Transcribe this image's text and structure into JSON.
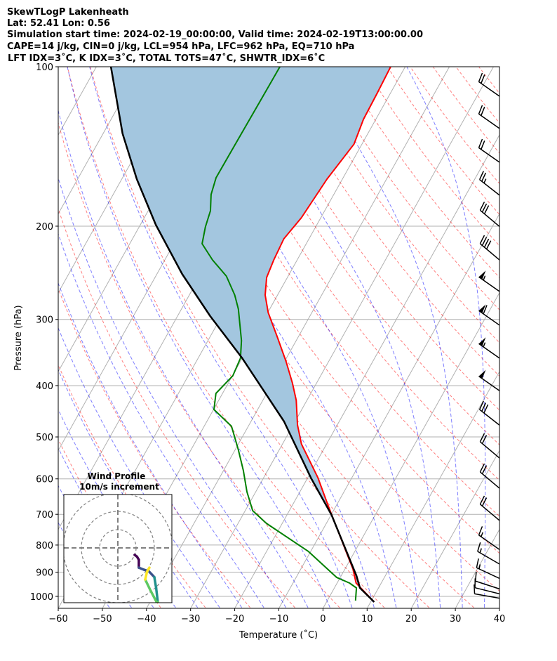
{
  "header": {
    "line1": "SkewTLogP Lakenheath",
    "line2": "Lat: 52.41   Lon: 0.56",
    "line3": "Simulation start time: 2024-02-19_00:00:00, Valid time: 2024-02-19T13:00:00.00",
    "line4": "CAPE=14 j/kg, CIN=0 j/kg, LCL=954 hPa, LFC=962 hPa, EQ=710 hPa",
    "line5": "LFT IDX=3˚C, K IDX=3˚C, TOTAL TOTS=47˚C, SHWTR_IDX=6˚C"
  },
  "chart_data": {
    "type": "line",
    "subtype": "skew-t log-p",
    "xlabel": "Temperature (˚C)",
    "ylabel": "Pressure (hPa)",
    "xlim": [
      -60,
      40
    ],
    "ylim": [
      1050,
      100
    ],
    "grid": true,
    "x_ticks": [
      -60,
      -50,
      -40,
      -30,
      -20,
      -10,
      0,
      10,
      20,
      30,
      40
    ],
    "y_ticks": [
      100,
      200,
      300,
      400,
      500,
      600,
      700,
      800,
      900,
      1000
    ],
    "series": [
      {
        "name": "Temperature",
        "color": "#ff0000",
        "p": [
          100,
          112.3,
          125.7,
          140,
          163,
          192.8,
          211.3,
          231.6,
          250,
          269.8,
          291.2,
          324,
          360.6,
          395.3,
          426.6,
          474.8,
          515.6,
          597,
          674.5,
          802.7,
          887.8,
          943.6,
          1024.7
        ],
        "T": [
          -53.3,
          -53.0,
          -52.8,
          -51.8,
          -53.5,
          -54.4,
          -55.7,
          -55.3,
          -54.7,
          -52.8,
          -49.9,
          -44.7,
          -39.6,
          -35.5,
          -32.4,
          -29.0,
          -25.7,
          -17.7,
          -11.8,
          -3.2,
          1.8,
          4.3,
          10.8
        ]
      },
      {
        "name": "Dewpoint",
        "color": "#008000",
        "p": [
          100,
          114.7,
          143.4,
          162,
          174.3,
          187,
          200.6,
          215.9,
          231.6,
          248.5,
          269.8,
          286.8,
          328.9,
          355,
          383.4,
          413.7,
          443.8,
          477.5,
          528.3,
          578.8,
          634.6,
          688.9,
          727.9,
          822.6,
          921,
          943.6,
          964,
          1018.6
        ],
        "T": [
          -78.4,
          -78.5,
          -78.7,
          -78.8,
          -77.8,
          -75.9,
          -75.0,
          -73.6,
          -69.2,
          -64.0,
          -59.7,
          -57.1,
          -52.4,
          -50.4,
          -49.9,
          -51.5,
          -49.9,
          -43.8,
          -39.3,
          -35.5,
          -32.0,
          -28.3,
          -23.6,
          -10.5,
          -0.8,
          2.8,
          5.0,
          6.4
        ]
      },
      {
        "name": "Parcel profile",
        "color": "#000000",
        "p": [
          100,
          133.7,
          163,
          198.8,
          246.2,
          295.7,
          355,
          467.5,
          597,
          701.8,
          915,
          964,
          1024.7
        ],
        "T": [
          -116.7,
          -105.6,
          -96.6,
          -86.5,
          -74.3,
          -62.6,
          -50.0,
          -32.5,
          -19.3,
          -9.9,
          3.5,
          5.8,
          10.8
        ]
      }
    ],
    "shading": {
      "name": "CIN area",
      "color": "#a3c6df"
    },
    "wind_barbs": {
      "units": "kt",
      "p": [
        113.7,
        130.8,
        151.5,
        174.8,
        200.3,
        231.6,
        265.6,
        307.6,
        355,
        409,
        475,
        548,
        625,
        719,
        816,
        869,
        925,
        968,
        989,
        1008
      ],
      "speed": [
        20,
        20,
        20,
        25,
        30,
        40,
        55,
        60,
        55,
        50,
        30,
        20,
        20,
        20,
        15,
        15,
        15,
        10,
        10,
        10
      ],
      "direction": [
        305,
        305,
        305,
        308,
        310,
        310,
        305,
        305,
        305,
        305,
        308,
        310,
        310,
        310,
        305,
        300,
        295,
        288,
        284,
        280
      ]
    },
    "hodograph": {
      "title": "Wind Profile",
      "subtitle": "10m/s increment",
      "ring_increment": 10,
      "rings": [
        10,
        20,
        30
      ],
      "u": [
        9.2,
        10.5,
        11.5,
        11.5,
        14.5,
        16.9,
        20.0,
        21.0,
        21.9,
        21.2,
        18.0,
        15.0,
        16.0,
        17.3
      ],
      "v": [
        -3.8,
        -4.8,
        -6.5,
        -10.8,
        -12.0,
        -12.7,
        -16.0,
        -22.0,
        -29.6,
        -29.6,
        -23.5,
        -17.3,
        -13.0,
        -10.8
      ],
      "colors": [
        "#440154",
        "#3b528b",
        "#21918c",
        "#5ec962",
        "#fde725"
      ]
    }
  }
}
